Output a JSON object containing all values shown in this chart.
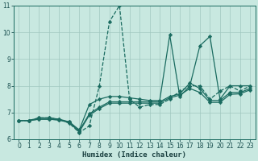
{
  "xlabel": "Humidex (Indice chaleur)",
  "xlim_min": -0.5,
  "xlim_max": 23.5,
  "ylim_min": 6,
  "ylim_max": 11,
  "xticks": [
    0,
    1,
    2,
    3,
    4,
    5,
    6,
    7,
    8,
    9,
    10,
    11,
    12,
    13,
    14,
    15,
    16,
    17,
    18,
    19,
    20,
    21,
    22,
    23
  ],
  "yticks": [
    6,
    7,
    8,
    9,
    10,
    11
  ],
  "bg_color": "#c8e8e0",
  "grid_color": "#a0c8c0",
  "line_color": "#1a6b60",
  "series": [
    {
      "y": [
        6.7,
        6.7,
        6.8,
        6.8,
        6.75,
        6.6,
        6.25,
        6.5,
        8.0,
        10.4,
        11.0,
        7.5,
        7.2,
        7.3,
        7.3,
        7.5,
        7.8,
        8.0,
        8.0,
        7.5,
        7.8,
        8.0,
        7.8,
        8.0
      ],
      "linestyle": "--",
      "linewidth": 0.9,
      "marker": "D",
      "markersize": 2.2
    },
    {
      "y": [
        6.7,
        6.7,
        6.8,
        6.8,
        6.75,
        6.65,
        6.35,
        7.3,
        7.5,
        7.6,
        7.6,
        7.55,
        7.5,
        7.45,
        7.45,
        9.9,
        7.6,
        8.0,
        9.5,
        9.85,
        7.5,
        8.0,
        8.0,
        8.0
      ],
      "linestyle": "-",
      "linewidth": 0.9,
      "marker": "D",
      "markersize": 2.2
    },
    {
      "y": [
        6.7,
        6.7,
        6.75,
        6.75,
        6.72,
        6.65,
        6.32,
        6.95,
        7.2,
        7.4,
        7.4,
        7.4,
        7.4,
        7.4,
        7.4,
        7.6,
        7.7,
        8.1,
        7.9,
        7.45,
        7.45,
        7.75,
        7.75,
        7.9
      ],
      "linestyle": "-",
      "linewidth": 0.9,
      "marker": "D",
      "markersize": 2.2
    },
    {
      "y": [
        6.7,
        6.7,
        6.75,
        6.75,
        6.72,
        6.62,
        6.28,
        6.9,
        7.15,
        7.35,
        7.35,
        7.35,
        7.35,
        7.35,
        7.35,
        7.55,
        7.65,
        7.9,
        7.75,
        7.38,
        7.38,
        7.68,
        7.7,
        7.85
      ],
      "linestyle": "-",
      "linewidth": 0.9,
      "marker": "D",
      "markersize": 2.2
    }
  ],
  "tick_fontsize": 5.5,
  "xlabel_fontsize": 6.5,
  "tick_color": "#1a5050",
  "xlabel_color": "#1a4040"
}
